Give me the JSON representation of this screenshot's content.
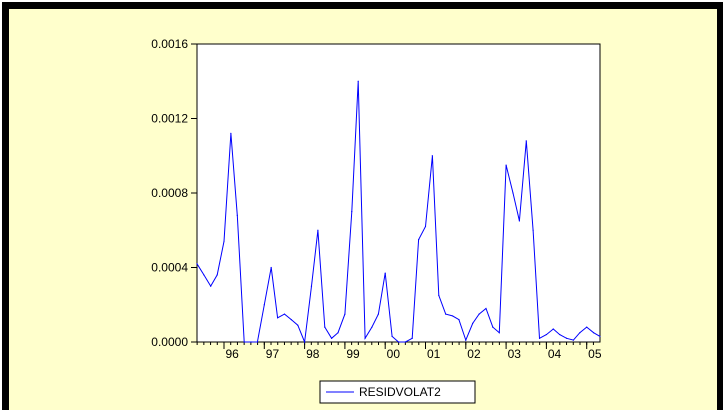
{
  "colors": {
    "background": "#ffffcc",
    "plot_area": "#ffffff",
    "frame": "#000000",
    "series_line": "#0000ff"
  },
  "chart_data": {
    "type": "line",
    "title": "",
    "xlabel": "",
    "ylabel": "",
    "ylim": [
      0,
      0.0016
    ],
    "xlim": [
      1995.33,
      2005.33
    ],
    "y_ticks": [
      0.0,
      0.0004,
      0.0008,
      0.0012,
      0.0016
    ],
    "y_tick_labels": [
      "0.0000",
      "0.0004",
      "0.0008",
      "0.0012",
      "0.0016"
    ],
    "x_tick_labels": [
      "96",
      "97",
      "98",
      "99",
      "00",
      "01",
      "02",
      "03",
      "04",
      "05"
    ],
    "x_tick_label_years": [
      1996,
      1997,
      1998,
      1999,
      2000,
      2001,
      2002,
      2003,
      2004,
      2005
    ],
    "grid": false,
    "legend_position": "bottom-center",
    "series": [
      {
        "name": "RESIDVOLAT2",
        "color": "#0000ff",
        "x": [
          1995.33,
          1995.5,
          1995.67,
          1995.83,
          1996.0,
          1996.17,
          1996.33,
          1996.5,
          1996.67,
          1996.83,
          1997.0,
          1997.17,
          1997.33,
          1997.5,
          1997.67,
          1997.83,
          1998.0,
          1998.17,
          1998.33,
          1998.5,
          1998.67,
          1998.83,
          1999.0,
          1999.17,
          1999.33,
          1999.5,
          1999.67,
          1999.83,
          2000.0,
          2000.17,
          2000.33,
          2000.5,
          2000.67,
          2000.83,
          2001.0,
          2001.17,
          2001.33,
          2001.5,
          2001.67,
          2001.83,
          2002.0,
          2002.17,
          2002.33,
          2002.5,
          2002.67,
          2002.83,
          2003.0,
          2003.17,
          2003.33,
          2003.5,
          2003.67,
          2003.83,
          2004.0,
          2004.17,
          2004.33,
          2004.5,
          2004.67,
          2004.83,
          2005.0,
          2005.17,
          2005.33
        ],
        "values": [
          0.00042,
          0.00036,
          0.0003,
          0.00036,
          0.00054,
          0.00112,
          0.00068,
          0.0,
          0.0,
          0.0,
          0.0002,
          0.0004,
          0.00013,
          0.00015,
          0.00012,
          9e-05,
          0.0,
          0.0003,
          0.0006,
          8e-05,
          2e-05,
          5e-05,
          0.00015,
          0.0007,
          0.0014,
          2e-05,
          8e-05,
          0.00015,
          0.00037,
          3e-05,
          0.0,
          0.0,
          2e-05,
          0.00055,
          0.00062,
          0.001,
          0.00025,
          0.00015,
          0.00014,
          0.00012,
          1e-05,
          0.0001,
          0.00015,
          0.00018,
          8e-05,
          5e-05,
          0.00095,
          0.0008,
          0.00065,
          0.00108,
          0.0006,
          2e-05,
          4e-05,
          7e-05,
          4e-05,
          2e-05,
          1e-05,
          5e-05,
          8e-05,
          5e-05,
          3e-05
        ]
      }
    ]
  }
}
